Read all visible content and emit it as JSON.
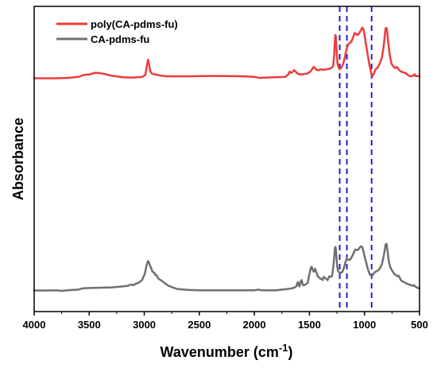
{
  "chart_data": {
    "type": "line",
    "xlabel": "Wavenumber (cm",
    "xlabel_sup": "-1",
    "xlabel_end": ")",
    "ylabel": "Absorbance",
    "xlim": [
      4000,
      500
    ],
    "ylim": [
      0,
      1
    ],
    "x_reversed": true,
    "y_ticks_labeled": false,
    "grid": false,
    "legend_position": "top-left",
    "xticks": [
      {
        "value": 4000,
        "label": "4000"
      },
      {
        "value": 3500,
        "label": "3500"
      },
      {
        "value": 3000,
        "label": "3000"
      },
      {
        "value": 2500,
        "label": "2500"
      },
      {
        "value": 2000,
        "label": "2000"
      },
      {
        "value": 1500,
        "label": "1500"
      },
      {
        "value": 1000,
        "label": "1000"
      },
      {
        "value": 500,
        "label": "500"
      }
    ],
    "reference_lines": [
      {
        "x": 1225,
        "color": "#1f1fd6",
        "style": "dashed"
      },
      {
        "x": 1160,
        "color": "#1f1fd6",
        "style": "dashed"
      },
      {
        "x": 935,
        "color": "#1f1fd6",
        "style": "dashed"
      }
    ],
    "series": [
      {
        "name": "poly(CA-pdms-fu)",
        "color": "#ef3b3b",
        "points": [
          [
            4000,
            0.55
          ],
          [
            3800,
            0.55
          ],
          [
            3700,
            0.553
          ],
          [
            3600,
            0.56
          ],
          [
            3550,
            0.575
          ],
          [
            3500,
            0.578
          ],
          [
            3450,
            0.59
          ],
          [
            3420,
            0.59
          ],
          [
            3380,
            0.585
          ],
          [
            3300,
            0.57
          ],
          [
            3200,
            0.558
          ],
          [
            3100,
            0.555
          ],
          [
            3020,
            0.56
          ],
          [
            2990,
            0.575
          ],
          [
            2975,
            0.65
          ],
          [
            2965,
            0.688
          ],
          [
            2958,
            0.66
          ],
          [
            2945,
            0.6
          ],
          [
            2930,
            0.585
          ],
          [
            2910,
            0.58
          ],
          [
            2880,
            0.575
          ],
          [
            2850,
            0.57
          ],
          [
            2800,
            0.565
          ],
          [
            2600,
            0.565
          ],
          [
            2400,
            0.567
          ],
          [
            2300,
            0.567
          ],
          [
            2100,
            0.565
          ],
          [
            2000,
            0.56
          ],
          [
            1950,
            0.553
          ],
          [
            1900,
            0.555
          ],
          [
            1800,
            0.558
          ],
          [
            1720,
            0.56
          ],
          [
            1690,
            0.58
          ],
          [
            1680,
            0.6
          ],
          [
            1665,
            0.59
          ],
          [
            1650,
            0.6
          ],
          [
            1640,
            0.61
          ],
          [
            1630,
            0.605
          ],
          [
            1610,
            0.585
          ],
          [
            1580,
            0.578
          ],
          [
            1520,
            0.585
          ],
          [
            1490,
            0.6
          ],
          [
            1470,
            0.625
          ],
          [
            1460,
            0.635
          ],
          [
            1450,
            0.625
          ],
          [
            1430,
            0.61
          ],
          [
            1415,
            0.61
          ],
          [
            1400,
            0.617
          ],
          [
            1380,
            0.613
          ],
          [
            1350,
            0.615
          ],
          [
            1320,
            0.62
          ],
          [
            1300,
            0.625
          ],
          [
            1285,
            0.64
          ],
          [
            1275,
            0.72
          ],
          [
            1270,
            0.81
          ],
          [
            1265,
            0.87
          ],
          [
            1260,
            0.86
          ],
          [
            1255,
            0.78
          ],
          [
            1245,
            0.66
          ],
          [
            1235,
            0.63
          ],
          [
            1225,
            0.618
          ],
          [
            1215,
            0.625
          ],
          [
            1200,
            0.645
          ],
          [
            1185,
            0.68
          ],
          [
            1170,
            0.74
          ],
          [
            1150,
            0.8
          ],
          [
            1120,
            0.82
          ],
          [
            1100,
            0.86
          ],
          [
            1090,
            0.885
          ],
          [
            1080,
            0.88
          ],
          [
            1065,
            0.87
          ],
          [
            1050,
            0.88
          ],
          [
            1030,
            0.91
          ],
          [
            1020,
            0.925
          ],
          [
            1010,
            0.915
          ],
          [
            1000,
            0.88
          ],
          [
            990,
            0.82
          ],
          [
            970,
            0.72
          ],
          [
            955,
            0.65
          ],
          [
            940,
            0.59
          ],
          [
            930,
            0.565
          ],
          [
            920,
            0.575
          ],
          [
            900,
            0.615
          ],
          [
            880,
            0.63
          ],
          [
            860,
            0.66
          ],
          [
            840,
            0.71
          ],
          [
            825,
            0.79
          ],
          [
            815,
            0.87
          ],
          [
            808,
            0.92
          ],
          [
            800,
            0.922
          ],
          [
            795,
            0.905
          ],
          [
            785,
            0.82
          ],
          [
            770,
            0.72
          ],
          [
            755,
            0.66
          ],
          [
            740,
            0.64
          ],
          [
            720,
            0.625
          ],
          [
            705,
            0.635
          ],
          [
            690,
            0.615
          ],
          [
            670,
            0.6
          ],
          [
            650,
            0.595
          ],
          [
            620,
            0.585
          ],
          [
            600,
            0.57
          ],
          [
            580,
            0.565
          ],
          [
            560,
            0.568
          ],
          [
            545,
            0.58
          ],
          [
            535,
            0.565
          ],
          [
            520,
            0.567
          ],
          [
            500,
            0.565
          ]
        ]
      },
      {
        "name": "CA-pdms-fu",
        "color": "#707070",
        "points": [
          [
            4000,
            0.028
          ],
          [
            3900,
            0.028
          ],
          [
            3800,
            0.03
          ],
          [
            3750,
            0.025
          ],
          [
            3700,
            0.03
          ],
          [
            3650,
            0.033
          ],
          [
            3600,
            0.035
          ],
          [
            3560,
            0.045
          ],
          [
            3500,
            0.048
          ],
          [
            3400,
            0.05
          ],
          [
            3300,
            0.052
          ],
          [
            3200,
            0.06
          ],
          [
            3150,
            0.065
          ],
          [
            3120,
            0.075
          ],
          [
            3100,
            0.07
          ],
          [
            3080,
            0.08
          ],
          [
            3050,
            0.09
          ],
          [
            3020,
            0.11
          ],
          [
            2995,
            0.16
          ],
          [
            2985,
            0.2
          ],
          [
            2975,
            0.24
          ],
          [
            2965,
            0.26
          ],
          [
            2958,
            0.25
          ],
          [
            2950,
            0.23
          ],
          [
            2940,
            0.21
          ],
          [
            2925,
            0.175
          ],
          [
            2910,
            0.17
          ],
          [
            2900,
            0.15
          ],
          [
            2890,
            0.15
          ],
          [
            2870,
            0.12
          ],
          [
            2850,
            0.11
          ],
          [
            2820,
            0.09
          ],
          [
            2780,
            0.065
          ],
          [
            2750,
            0.055
          ],
          [
            2700,
            0.04
          ],
          [
            2600,
            0.033
          ],
          [
            2500,
            0.03
          ],
          [
            2400,
            0.03
          ],
          [
            2300,
            0.03
          ],
          [
            2200,
            0.03
          ],
          [
            2100,
            0.03
          ],
          [
            2000,
            0.03
          ],
          [
            1960,
            0.035
          ],
          [
            1940,
            0.03
          ],
          [
            1900,
            0.03
          ],
          [
            1800,
            0.03
          ],
          [
            1750,
            0.035
          ],
          [
            1700,
            0.04
          ],
          [
            1660,
            0.045
          ],
          [
            1640,
            0.05
          ],
          [
            1620,
            0.06
          ],
          [
            1605,
            0.095
          ],
          [
            1598,
            0.07
          ],
          [
            1590,
            0.06
          ],
          [
            1580,
            0.1
          ],
          [
            1570,
            0.11
          ],
          [
            1560,
            0.07
          ],
          [
            1545,
            0.07
          ],
          [
            1530,
            0.08
          ],
          [
            1515,
            0.09
          ],
          [
            1505,
            0.14
          ],
          [
            1495,
            0.175
          ],
          [
            1490,
            0.2
          ],
          [
            1480,
            0.215
          ],
          [
            1470,
            0.19
          ],
          [
            1460,
            0.175
          ],
          [
            1450,
            0.2
          ],
          [
            1440,
            0.18
          ],
          [
            1425,
            0.14
          ],
          [
            1410,
            0.13
          ],
          [
            1400,
            0.12
          ],
          [
            1390,
            0.12
          ],
          [
            1380,
            0.11
          ],
          [
            1370,
            0.135
          ],
          [
            1360,
            0.13
          ],
          [
            1350,
            0.12
          ],
          [
            1335,
            0.11
          ],
          [
            1320,
            0.14
          ],
          [
            1310,
            0.135
          ],
          [
            1295,
            0.14
          ],
          [
            1285,
            0.2
          ],
          [
            1275,
            0.29
          ],
          [
            1270,
            0.35
          ],
          [
            1265,
            0.37
          ],
          [
            1260,
            0.36
          ],
          [
            1255,
            0.3
          ],
          [
            1248,
            0.22
          ],
          [
            1240,
            0.18
          ],
          [
            1230,
            0.17
          ],
          [
            1220,
            0.16
          ],
          [
            1210,
            0.17
          ],
          [
            1200,
            0.175
          ],
          [
            1185,
            0.21
          ],
          [
            1170,
            0.26
          ],
          [
            1160,
            0.28
          ],
          [
            1150,
            0.27
          ],
          [
            1130,
            0.27
          ],
          [
            1110,
            0.3
          ],
          [
            1095,
            0.33
          ],
          [
            1085,
            0.35
          ],
          [
            1075,
            0.35
          ],
          [
            1065,
            0.345
          ],
          [
            1055,
            0.35
          ],
          [
            1040,
            0.37
          ],
          [
            1030,
            0.375
          ],
          [
            1020,
            0.37
          ],
          [
            1010,
            0.34
          ],
          [
            1000,
            0.3
          ],
          [
            985,
            0.25
          ],
          [
            970,
            0.2
          ],
          [
            955,
            0.16
          ],
          [
            945,
            0.15
          ],
          [
            935,
            0.14
          ],
          [
            925,
            0.15
          ],
          [
            910,
            0.17
          ],
          [
            890,
            0.18
          ],
          [
            870,
            0.19
          ],
          [
            855,
            0.21
          ],
          [
            840,
            0.24
          ],
          [
            825,
            0.3
          ],
          [
            815,
            0.35
          ],
          [
            808,
            0.39
          ],
          [
            800,
            0.395
          ],
          [
            795,
            0.37
          ],
          [
            785,
            0.3
          ],
          [
            775,
            0.24
          ],
          [
            760,
            0.2
          ],
          [
            745,
            0.18
          ],
          [
            730,
            0.16
          ],
          [
            715,
            0.15
          ],
          [
            700,
            0.14
          ],
          [
            690,
            0.145
          ],
          [
            680,
            0.13
          ],
          [
            670,
            0.11
          ],
          [
            655,
            0.1
          ],
          [
            640,
            0.095
          ],
          [
            625,
            0.085
          ],
          [
            610,
            0.08
          ],
          [
            595,
            0.075
          ],
          [
            575,
            0.07
          ],
          [
            560,
            0.065
          ],
          [
            548,
            0.07
          ],
          [
            540,
            0.06
          ],
          [
            530,
            0.055
          ],
          [
            520,
            0.05
          ],
          [
            510,
            0.045
          ],
          [
            500,
            0.045
          ]
        ]
      }
    ]
  }
}
